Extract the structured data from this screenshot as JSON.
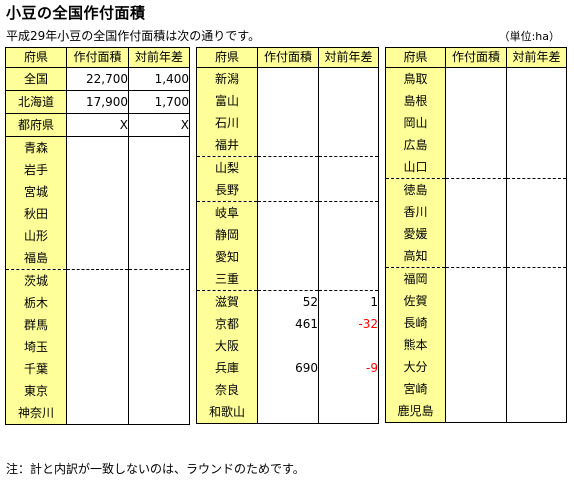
{
  "title": "小豆の全国作付面積",
  "subtitle": "平成29年小豆の全国作付面積は次の通りです。",
  "unit": "（単位:ha）",
  "note": "注：計と内訳が一致しないのは、ラウンドのためです。",
  "headers": {
    "pref": "府県",
    "area": "作付面積",
    "diff": "対前年差"
  },
  "tables": [
    {
      "rows": [
        {
          "name": "全国",
          "area": "22,700",
          "diff": "1,400",
          "sep": "solid"
        },
        {
          "name": "北海道",
          "area": "17,900",
          "diff": "1,700",
          "sep": "solid"
        },
        {
          "name": "都府県",
          "area": "X",
          "diff": "X",
          "sep": "solid"
        },
        {
          "name": "青森",
          "area": "",
          "diff": "",
          "sep": "solid"
        },
        {
          "name": "岩手",
          "area": "",
          "diff": "",
          "sep": ""
        },
        {
          "name": "宮城",
          "area": "",
          "diff": "",
          "sep": ""
        },
        {
          "name": "秋田",
          "area": "",
          "diff": "",
          "sep": ""
        },
        {
          "name": "山形",
          "area": "",
          "diff": "",
          "sep": ""
        },
        {
          "name": "福島",
          "area": "",
          "diff": "",
          "sep": ""
        },
        {
          "name": "茨城",
          "area": "",
          "diff": "",
          "sep": "dash"
        },
        {
          "name": "栃木",
          "area": "",
          "diff": "",
          "sep": ""
        },
        {
          "name": "群馬",
          "area": "",
          "diff": "",
          "sep": ""
        },
        {
          "name": "埼玉",
          "area": "",
          "diff": "",
          "sep": ""
        },
        {
          "name": "千葉",
          "area": "",
          "diff": "",
          "sep": ""
        },
        {
          "name": "東京",
          "area": "",
          "diff": "",
          "sep": ""
        },
        {
          "name": "神奈川",
          "area": "",
          "diff": "",
          "sep": ""
        }
      ]
    },
    {
      "rows": [
        {
          "name": "新潟",
          "area": "",
          "diff": "",
          "sep": "solid"
        },
        {
          "name": "富山",
          "area": "",
          "diff": "",
          "sep": ""
        },
        {
          "name": "石川",
          "area": "",
          "diff": "",
          "sep": ""
        },
        {
          "name": "福井",
          "area": "",
          "diff": "",
          "sep": ""
        },
        {
          "name": "山梨",
          "area": "",
          "diff": "",
          "sep": "dash"
        },
        {
          "name": "長野",
          "area": "",
          "diff": "",
          "sep": ""
        },
        {
          "name": "岐阜",
          "area": "",
          "diff": "",
          "sep": "dash"
        },
        {
          "name": "静岡",
          "area": "",
          "diff": "",
          "sep": ""
        },
        {
          "name": "愛知",
          "area": "",
          "diff": "",
          "sep": ""
        },
        {
          "name": "三重",
          "area": "",
          "diff": "",
          "sep": ""
        },
        {
          "name": "滋賀",
          "area": "52",
          "diff": "1",
          "sep": "dash"
        },
        {
          "name": "京都",
          "area": "461",
          "diff": "-32",
          "sep": "",
          "neg": true
        },
        {
          "name": "大阪",
          "area": "",
          "diff": "",
          "sep": ""
        },
        {
          "name": "兵庫",
          "area": "690",
          "diff": "-9",
          "sep": "",
          "neg": true
        },
        {
          "name": "奈良",
          "area": "",
          "diff": "",
          "sep": ""
        },
        {
          "name": "和歌山",
          "area": "",
          "diff": "",
          "sep": ""
        }
      ]
    },
    {
      "rows": [
        {
          "name": "鳥取",
          "area": "",
          "diff": "",
          "sep": "solid"
        },
        {
          "name": "島根",
          "area": "",
          "diff": "",
          "sep": ""
        },
        {
          "name": "岡山",
          "area": "",
          "diff": "",
          "sep": ""
        },
        {
          "name": "広島",
          "area": "",
          "diff": "",
          "sep": ""
        },
        {
          "name": "山口",
          "area": "",
          "diff": "",
          "sep": ""
        },
        {
          "name": "徳島",
          "area": "",
          "diff": "",
          "sep": "dash"
        },
        {
          "name": "香川",
          "area": "",
          "diff": "",
          "sep": ""
        },
        {
          "name": "愛媛",
          "area": "",
          "diff": "",
          "sep": ""
        },
        {
          "name": "高知",
          "area": "",
          "diff": "",
          "sep": ""
        },
        {
          "name": "福岡",
          "area": "",
          "diff": "",
          "sep": "dash"
        },
        {
          "name": "佐賀",
          "area": "",
          "diff": "",
          "sep": ""
        },
        {
          "name": "長崎",
          "area": "",
          "diff": "",
          "sep": ""
        },
        {
          "name": "熊本",
          "area": "",
          "diff": "",
          "sep": ""
        },
        {
          "name": "大分",
          "area": "",
          "diff": "",
          "sep": ""
        },
        {
          "name": "宮崎",
          "area": "",
          "diff": "",
          "sep": ""
        },
        {
          "name": "鹿児島",
          "area": "",
          "diff": "",
          "sep": ""
        }
      ]
    }
  ]
}
